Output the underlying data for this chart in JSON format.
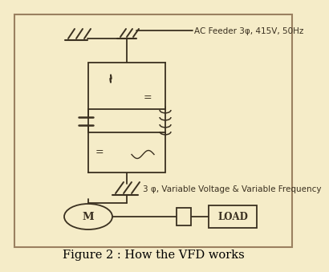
{
  "bg_color": "#f5ecc8",
  "border_color": "#9a8060",
  "line_color": "#3a3020",
  "title": "Figure 2 : How the VFD works",
  "title_fontsize": 10.5,
  "label_ac": "AC Feeder 3φ, 415V, 50Hz",
  "label_3ph": "3 φ, Variable Voltage & Variable Frequency",
  "label_load": "LOAD",
  "label_motor": "M",
  "fig_width": 3.62,
  "fig_height": 3.19
}
